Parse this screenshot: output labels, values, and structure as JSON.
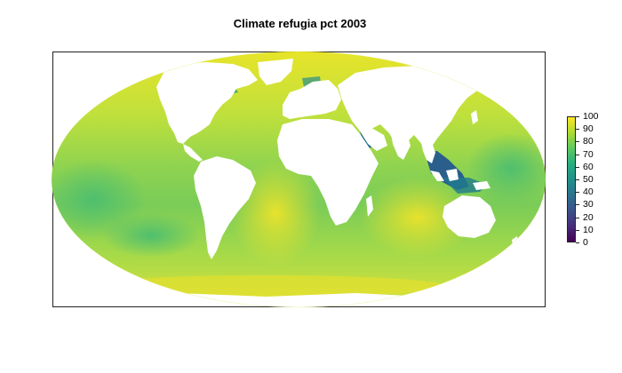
{
  "title": "Climate refugia pct 2003",
  "legend": {
    "colors": [
      "#440154",
      "#472d7b",
      "#3b528b",
      "#2c728e",
      "#21918c",
      "#28ae80",
      "#5ec962",
      "#addc30",
      "#fde725"
    ],
    "ticks": [
      "100",
      "90",
      "80",
      "70",
      "60",
      "50",
      "40",
      "30",
      "20",
      "10",
      "0"
    ]
  },
  "map": {
    "projection": "Mollweide",
    "ocean_palette": "viridis",
    "dominant_colors": [
      "#c8e03a",
      "#e6e22a",
      "#8fd14f",
      "#3fbc73",
      "#1f7f8c",
      "#2b5f8a"
    ],
    "land_color": "#ffffff"
  }
}
